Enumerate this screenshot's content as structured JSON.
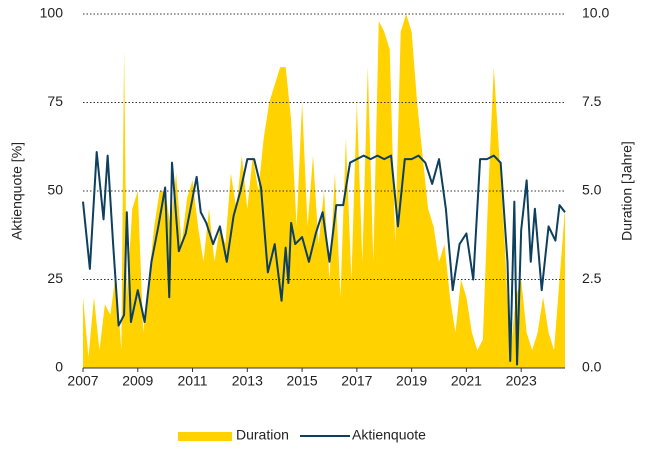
{
  "chart_data": {
    "type": "area_line",
    "ylabel": "Aktienquote [%]",
    "y2label": "Duration [Jahre]",
    "xlim": [
      2007,
      2024.6
    ],
    "xticks": [
      2007,
      2009,
      2011,
      2013,
      2015,
      2017,
      2019,
      2021,
      2023
    ],
    "ylim": [
      0,
      100
    ],
    "yticks": [
      0,
      25,
      50,
      75,
      100
    ],
    "y2lim": [
      0,
      10
    ],
    "y2ticks": [
      {
        "value": 0,
        "label": "0.0"
      },
      {
        "value": 2.5,
        "label": "2.5"
      },
      {
        "value": 5,
        "label": "5.0"
      },
      {
        "value": 7.5,
        "label": "7.5"
      },
      {
        "value": 10,
        "label": "10.0"
      }
    ],
    "grid": true,
    "legend": "bottom",
    "series": [
      {
        "name": "Duration",
        "color": "#ffd200",
        "kind": "area",
        "axis": "y2",
        "x": [
          2007.0,
          2007.2,
          2007.4,
          2007.6,
          2007.8,
          2008.0,
          2008.2,
          2008.4,
          2008.5,
          2008.6,
          2008.8,
          2009.0,
          2009.2,
          2009.4,
          2009.6,
          2009.8,
          2010.0,
          2010.2,
          2010.4,
          2010.6,
          2010.8,
          2011.0,
          2011.2,
          2011.4,
          2011.6,
          2011.8,
          2012.0,
          2012.2,
          2012.4,
          2012.6,
          2012.8,
          2013.0,
          2013.2,
          2013.4,
          2013.6,
          2013.8,
          2014.0,
          2014.2,
          2014.4,
          2014.6,
          2014.8,
          2015.0,
          2015.2,
          2015.4,
          2015.6,
          2015.8,
          2016.0,
          2016.2,
          2016.4,
          2016.6,
          2016.8,
          2017.0,
          2017.2,
          2017.4,
          2017.6,
          2017.8,
          2018.0,
          2018.2,
          2018.4,
          2018.6,
          2018.8,
          2019.0,
          2019.2,
          2019.4,
          2019.6,
          2019.8,
          2020.0,
          2020.2,
          2020.4,
          2020.6,
          2020.8,
          2021.0,
          2021.2,
          2021.4,
          2021.6,
          2021.8,
          2022.0,
          2022.2,
          2022.4,
          2022.6,
          2022.8,
          2023.0,
          2023.2,
          2023.4,
          2023.6,
          2023.8,
          2024.0,
          2024.2,
          2024.4,
          2024.6
        ],
        "values": [
          2.0,
          0.3,
          2.0,
          0.5,
          1.8,
          1.5,
          2.7,
          0.5,
          9.0,
          2.0,
          4.5,
          5.0,
          1.0,
          2.5,
          4.0,
          5.0,
          5.0,
          4.0,
          5.5,
          3.5,
          4.8,
          5.3,
          4.0,
          3.0,
          4.5,
          3.0,
          4.0,
          3.5,
          5.5,
          4.5,
          6.0,
          4.5,
          6.0,
          5.0,
          6.5,
          7.5,
          8.0,
          8.5,
          8.5,
          7.0,
          4.0,
          7.5,
          4.0,
          6.0,
          3.5,
          5.0,
          2.5,
          5.5,
          2.0,
          6.5,
          2.5,
          7.5,
          3.0,
          8.5,
          3.0,
          9.8,
          9.5,
          9.0,
          3.5,
          9.5,
          10.0,
          9.5,
          7.5,
          6.0,
          4.5,
          4.0,
          3.0,
          3.5,
          2.0,
          1.0,
          2.5,
          2.0,
          1.0,
          0.5,
          0.8,
          5.0,
          8.5,
          6.0,
          3.5,
          0.3,
          2.0,
          2.5,
          1.0,
          0.5,
          1.0,
          2.0,
          1.0,
          0.5,
          2.5,
          4.5
        ]
      },
      {
        "name": "Aktienquote",
        "color": "#0d3f5e",
        "kind": "line",
        "axis": "y",
        "x": [
          2007.0,
          2007.25,
          2007.5,
          2007.75,
          2007.9,
          2008.1,
          2008.3,
          2008.5,
          2008.6,
          2008.75,
          2009.0,
          2009.25,
          2009.5,
          2009.75,
          2010.0,
          2010.15,
          2010.25,
          2010.5,
          2010.75,
          2011.0,
          2011.15,
          2011.3,
          2011.5,
          2011.75,
          2012.0,
          2012.25,
          2012.5,
          2012.75,
          2013.0,
          2013.25,
          2013.5,
          2013.75,
          2014.0,
          2014.25,
          2014.4,
          2014.5,
          2014.6,
          2014.75,
          2015.0,
          2015.25,
          2015.5,
          2015.75,
          2016.0,
          2016.25,
          2016.5,
          2016.75,
          2017.0,
          2017.25,
          2017.5,
          2017.75,
          2018.0,
          2018.25,
          2018.5,
          2018.75,
          2019.0,
          2019.25,
          2019.5,
          2019.75,
          2020.0,
          2020.25,
          2020.5,
          2020.75,
          2021.0,
          2021.25,
          2021.5,
          2021.75,
          2022.0,
          2022.25,
          2022.5,
          2022.6,
          2022.75,
          2022.85,
          2023.0,
          2023.2,
          2023.35,
          2023.5,
          2023.75,
          2024.0,
          2024.25,
          2024.4,
          2024.6
        ],
        "values": [
          47,
          28,
          61,
          42,
          60,
          35,
          12,
          15,
          44,
          13,
          22,
          13,
          30,
          40,
          51,
          20,
          58,
          33,
          38,
          48,
          54,
          44,
          41,
          35,
          40,
          30,
          43,
          50,
          59,
          59,
          51,
          27,
          35,
          19,
          34,
          24,
          41,
          35,
          37,
          30,
          38,
          44,
          30,
          46,
          46,
          58,
          59,
          60,
          59,
          60,
          59,
          60,
          40,
          59,
          59,
          60,
          58,
          52,
          59,
          45,
          22,
          35,
          38,
          25,
          59,
          59,
          60,
          58,
          30,
          2,
          47,
          1,
          39,
          53,
          30,
          45,
          22,
          40,
          36,
          46,
          44
        ]
      }
    ]
  }
}
